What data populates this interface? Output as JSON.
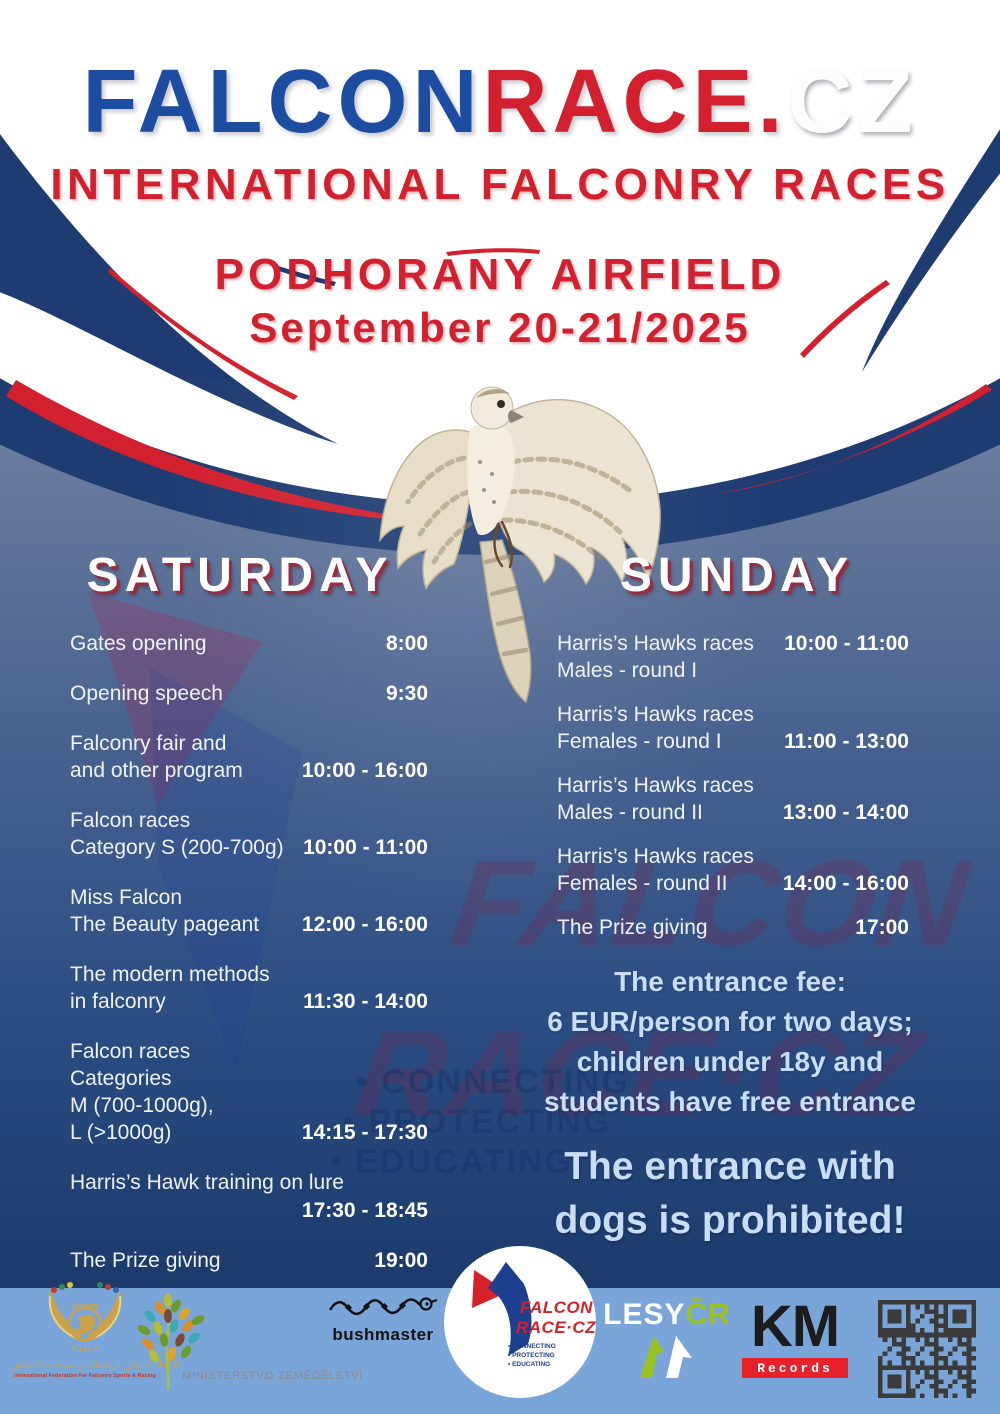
{
  "colors": {
    "navy": "#1e3c72",
    "red": "#d2202e",
    "title_blue": "#1c4da0",
    "footer_blue": "#7aa5d8"
  },
  "header": {
    "title_falcon": "FALCON",
    "title_race": "RACE.",
    "title_cz": "CZ",
    "subtitle": "INTERNATIONAL FALCONRY RACES",
    "venue": "PODHORANY AIRFIELD",
    "dates": "September 20-21/2025"
  },
  "saturday": {
    "title": "SATURDAY",
    "events": [
      {
        "lines": [
          "Gates opening"
        ],
        "time": "8:00"
      },
      {
        "lines": [
          "Opening speech"
        ],
        "time": "9:30"
      },
      {
        "lines": [
          "Falconry fair and",
          "and other program"
        ],
        "time": "10:00 - 16:00"
      },
      {
        "lines": [
          "Falcon races",
          "Category S (200-700g)"
        ],
        "time": "10:00 - 11:00"
      },
      {
        "lines": [
          "Miss Falcon",
          "The Beauty pageant"
        ],
        "time": "12:00 - 16:00"
      },
      {
        "lines": [
          "The modern methods",
          "in falconry"
        ],
        "time": "11:30 - 14:00"
      },
      {
        "lines": [
          "Falcon races Categories",
          "M (700-1000g),",
          "L (>1000g)"
        ],
        "time": "14:15 - 17:30"
      },
      {
        "lines": [
          "Harris’s Hawk training on lure"
        ],
        "time": "17:30 - 18:45"
      },
      {
        "lines": [
          "The Prize giving"
        ],
        "time": "19:00"
      }
    ]
  },
  "sunday": {
    "title": "SUNDAY",
    "events": [
      {
        "lines": [
          "Harris’s Hawks races",
          "Males - round I"
        ],
        "time": "10:00 - 11:00"
      },
      {
        "lines": [
          "Harris’s Hawks races",
          "Females - round I"
        ],
        "time": "11:00 - 13:00"
      },
      {
        "lines": [
          "Harris’s Hawks races",
          "Males - round II"
        ],
        "time": "13:00 - 14:00"
      },
      {
        "lines": [
          "Harris’s Hawks races",
          "Females - round II"
        ],
        "time": "14:00 - 16:00"
      },
      {
        "lines": [
          "The Prize giving"
        ],
        "time": "17:00"
      }
    ]
  },
  "entrance": {
    "fee_lines": [
      "The entrance fee:",
      "6 EUR/person for two days;",
      "children under 18y and",
      "students have free entrance"
    ],
    "dogs_lines": [
      "The entrance with",
      "dogs is prohibited!"
    ]
  },
  "watermark": {
    "line1": "FALCON",
    "line2": "RACE·CZ",
    "bullets": [
      "• CONNECTING",
      "• PROTECTING",
      "• EDUCATING"
    ]
  },
  "footer": {
    "iffsr": {
      "arabic": "الإتحاد الدولي لرياضات و سباقات الصقور",
      "caption": "International Federation For Falconry Sports & Racing"
    },
    "ministry": {
      "label": "MINISTERSTVO ZEMĚDĚLSTVÍ"
    },
    "bushmaster": {
      "label": "bushmaster"
    },
    "falconrace": {
      "line1": "FALCON",
      "line2": "RACE·CZ",
      "bullets": [
        "• CONNECTING",
        "• PROTECTING",
        "• EDUCATING"
      ]
    },
    "lesy": {
      "part1": "LESY",
      "part2": "ČR"
    },
    "km": {
      "big": "KM",
      "small": "Records"
    }
  }
}
